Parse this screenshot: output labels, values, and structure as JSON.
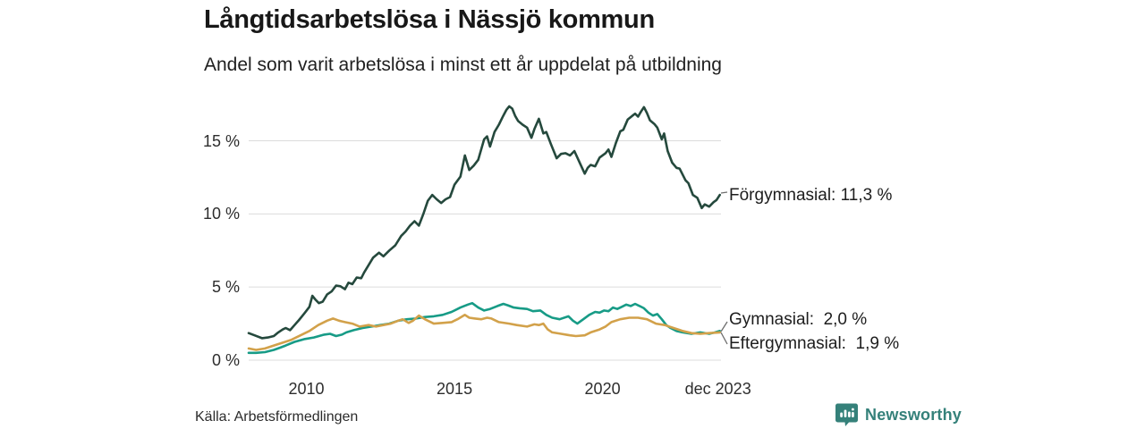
{
  "title": "Långtidsarbetslösa i Nässjö kommun",
  "subtitle": "Andel som varit arbetslösa i minst ett år uppdelat på utbildning",
  "source": "Källa: Arbetsförmedlingen",
  "brand": {
    "name": "Newsworthy",
    "color": "#35817a",
    "icon": "bar-chart-bubble-icon"
  },
  "chart_data": {
    "type": "line",
    "title": "Långtidsarbetslösa i Nässjö kommun",
    "subtitle": "Andel som varit arbetslösa i minst ett år uppdelat på utbildning",
    "xlabel": "",
    "ylabel": "",
    "x_unit": "decimal year (monthly series, 2008–dec 2023)",
    "ylim": [
      0,
      18
    ],
    "grid": true,
    "gridline_color": "#dcdcdc",
    "y_ticks": [
      {
        "value": 15,
        "label": "15 %"
      },
      {
        "value": 10,
        "label": "10 %"
      },
      {
        "value": 5,
        "label": "5 %"
      },
      {
        "value": 0,
        "label": "0 %"
      }
    ],
    "x_ticks": [
      {
        "value": 2010,
        "label": "2010"
      },
      {
        "value": 2015,
        "label": "2015"
      },
      {
        "value": 2020,
        "label": "2020"
      },
      {
        "value": 2023.9,
        "label": "dec 2023"
      }
    ],
    "legend_position": "right-end-labels",
    "series": [
      {
        "name": "Förgymnasial",
        "end_label": "Förgymnasial: 11,3 %",
        "current_value": "11,3 %",
        "color": "#25493d",
        "points": [
          [
            2008.05,
            1.85
          ],
          [
            2008.25,
            1.7
          ],
          [
            2008.5,
            1.5
          ],
          [
            2008.7,
            1.55
          ],
          [
            2008.9,
            1.65
          ],
          [
            2009.05,
            1.9
          ],
          [
            2009.2,
            2.1
          ],
          [
            2009.3,
            2.2
          ],
          [
            2009.45,
            2.05
          ],
          [
            2009.6,
            2.4
          ],
          [
            2009.75,
            2.75
          ],
          [
            2009.85,
            3.0
          ],
          [
            2009.95,
            3.25
          ],
          [
            2010.1,
            3.65
          ],
          [
            2010.2,
            4.4
          ],
          [
            2010.3,
            4.15
          ],
          [
            2010.42,
            3.9
          ],
          [
            2010.55,
            4.0
          ],
          [
            2010.7,
            4.5
          ],
          [
            2010.85,
            4.7
          ],
          [
            2011.0,
            5.1
          ],
          [
            2011.15,
            5.05
          ],
          [
            2011.3,
            4.85
          ],
          [
            2011.42,
            5.3
          ],
          [
            2011.55,
            5.2
          ],
          [
            2011.7,
            5.65
          ],
          [
            2011.85,
            5.6
          ],
          [
            2011.95,
            6.0
          ],
          [
            2012.1,
            6.5
          ],
          [
            2012.25,
            7.0
          ],
          [
            2012.45,
            7.35
          ],
          [
            2012.6,
            7.1
          ],
          [
            2012.8,
            7.5
          ],
          [
            2013.0,
            7.85
          ],
          [
            2013.2,
            8.5
          ],
          [
            2013.35,
            8.8
          ],
          [
            2013.5,
            9.2
          ],
          [
            2013.65,
            9.5
          ],
          [
            2013.8,
            9.2
          ],
          [
            2013.95,
            10.0
          ],
          [
            2014.1,
            10.9
          ],
          [
            2014.25,
            11.3
          ],
          [
            2014.4,
            11.0
          ],
          [
            2014.55,
            10.75
          ],
          [
            2014.7,
            11.0
          ],
          [
            2014.85,
            11.15
          ],
          [
            2015.0,
            12.0
          ],
          [
            2015.2,
            12.55
          ],
          [
            2015.35,
            14.0
          ],
          [
            2015.5,
            13.0
          ],
          [
            2015.65,
            13.3
          ],
          [
            2015.8,
            13.7
          ],
          [
            2016.0,
            15.1
          ],
          [
            2016.1,
            15.3
          ],
          [
            2016.2,
            14.6
          ],
          [
            2016.35,
            15.6
          ],
          [
            2016.5,
            16.1
          ],
          [
            2016.62,
            16.6
          ],
          [
            2016.75,
            17.1
          ],
          [
            2016.85,
            17.35
          ],
          [
            2016.95,
            17.2
          ],
          [
            2017.05,
            16.7
          ],
          [
            2017.15,
            16.35
          ],
          [
            2017.3,
            16.1
          ],
          [
            2017.45,
            15.9
          ],
          [
            2017.6,
            15.2
          ],
          [
            2017.7,
            15.8
          ],
          [
            2017.85,
            16.5
          ],
          [
            2018.0,
            15.5
          ],
          [
            2018.1,
            15.6
          ],
          [
            2018.25,
            14.8
          ],
          [
            2018.45,
            13.8
          ],
          [
            2018.6,
            14.1
          ],
          [
            2018.75,
            14.15
          ],
          [
            2018.9,
            14.0
          ],
          [
            2019.05,
            14.3
          ],
          [
            2019.25,
            13.4
          ],
          [
            2019.4,
            12.75
          ],
          [
            2019.5,
            13.15
          ],
          [
            2019.6,
            13.35
          ],
          [
            2019.75,
            13.25
          ],
          [
            2019.9,
            13.85
          ],
          [
            2020.1,
            14.15
          ],
          [
            2020.2,
            14.4
          ],
          [
            2020.3,
            13.9
          ],
          [
            2020.45,
            14.85
          ],
          [
            2020.6,
            15.65
          ],
          [
            2020.7,
            15.75
          ],
          [
            2020.85,
            16.45
          ],
          [
            2021.0,
            16.7
          ],
          [
            2021.1,
            16.85
          ],
          [
            2021.2,
            16.65
          ],
          [
            2021.3,
            17.0
          ],
          [
            2021.4,
            17.3
          ],
          [
            2021.5,
            16.9
          ],
          [
            2021.6,
            16.4
          ],
          [
            2021.75,
            16.15
          ],
          [
            2021.85,
            15.9
          ],
          [
            2022.0,
            15.1
          ],
          [
            2022.08,
            15.5
          ],
          [
            2022.2,
            14.3
          ],
          [
            2022.35,
            13.5
          ],
          [
            2022.5,
            13.15
          ],
          [
            2022.6,
            13.1
          ],
          [
            2022.8,
            12.3
          ],
          [
            2022.9,
            12.1
          ],
          [
            2023.05,
            11.3
          ],
          [
            2023.2,
            11.1
          ],
          [
            2023.35,
            10.4
          ],
          [
            2023.45,
            10.65
          ],
          [
            2023.6,
            10.5
          ],
          [
            2023.75,
            10.8
          ],
          [
            2023.85,
            10.95
          ],
          [
            2023.96,
            11.3
          ]
        ]
      },
      {
        "name": "Gymnasial",
        "end_label": "Gymnasial:  2,0 %",
        "current_value": "2,0 %",
        "color": "#179b86",
        "points": [
          [
            2008.05,
            0.5
          ],
          [
            2008.3,
            0.5
          ],
          [
            2008.6,
            0.55
          ],
          [
            2008.9,
            0.7
          ],
          [
            2009.1,
            0.85
          ],
          [
            2009.3,
            1.0
          ],
          [
            2009.6,
            1.25
          ],
          [
            2009.95,
            1.45
          ],
          [
            2010.25,
            1.55
          ],
          [
            2010.6,
            1.75
          ],
          [
            2010.8,
            1.8
          ],
          [
            2011.0,
            1.65
          ],
          [
            2011.2,
            1.75
          ],
          [
            2011.35,
            1.9
          ],
          [
            2011.6,
            2.05
          ],
          [
            2011.9,
            2.2
          ],
          [
            2012.2,
            2.3
          ],
          [
            2012.5,
            2.4
          ],
          [
            2012.8,
            2.5
          ],
          [
            2013.1,
            2.7
          ],
          [
            2013.4,
            2.8
          ],
          [
            2013.7,
            2.85
          ],
          [
            2014.0,
            2.95
          ],
          [
            2014.3,
            3.0
          ],
          [
            2014.6,
            3.1
          ],
          [
            2014.9,
            3.3
          ],
          [
            2015.2,
            3.6
          ],
          [
            2015.45,
            3.8
          ],
          [
            2015.6,
            3.9
          ],
          [
            2015.8,
            3.6
          ],
          [
            2016.0,
            3.4
          ],
          [
            2016.2,
            3.5
          ],
          [
            2016.45,
            3.7
          ],
          [
            2016.65,
            3.85
          ],
          [
            2016.8,
            3.75
          ],
          [
            2017.0,
            3.6
          ],
          [
            2017.2,
            3.55
          ],
          [
            2017.45,
            3.5
          ],
          [
            2017.65,
            3.35
          ],
          [
            2017.9,
            3.4
          ],
          [
            2018.1,
            3.1
          ],
          [
            2018.3,
            2.9
          ],
          [
            2018.55,
            2.8
          ],
          [
            2018.85,
            3.0
          ],
          [
            2019.0,
            2.7
          ],
          [
            2019.15,
            2.5
          ],
          [
            2019.35,
            2.8
          ],
          [
            2019.55,
            3.1
          ],
          [
            2019.75,
            3.3
          ],
          [
            2019.9,
            3.25
          ],
          [
            2020.05,
            3.4
          ],
          [
            2020.2,
            3.35
          ],
          [
            2020.35,
            3.6
          ],
          [
            2020.5,
            3.5
          ],
          [
            2020.65,
            3.65
          ],
          [
            2020.8,
            3.8
          ],
          [
            2020.95,
            3.7
          ],
          [
            2021.1,
            3.85
          ],
          [
            2021.25,
            3.7
          ],
          [
            2021.4,
            3.55
          ],
          [
            2021.55,
            3.25
          ],
          [
            2021.7,
            3.05
          ],
          [
            2021.85,
            3.15
          ],
          [
            2022.0,
            2.8
          ],
          [
            2022.15,
            2.4
          ],
          [
            2022.3,
            2.2
          ],
          [
            2022.5,
            2.0
          ],
          [
            2022.7,
            1.9
          ],
          [
            2023.0,
            1.8
          ],
          [
            2023.3,
            1.9
          ],
          [
            2023.6,
            1.8
          ],
          [
            2023.8,
            1.9
          ],
          [
            2023.96,
            2.0
          ]
        ]
      },
      {
        "name": "Eftergymnasial",
        "end_label": "Eftergymnasial:  1,9 %",
        "current_value": "1,9 %",
        "color": "#d2a14a",
        "points": [
          [
            2008.05,
            0.8
          ],
          [
            2008.3,
            0.7
          ],
          [
            2008.6,
            0.8
          ],
          [
            2008.9,
            1.0
          ],
          [
            2009.2,
            1.2
          ],
          [
            2009.5,
            1.4
          ],
          [
            2009.8,
            1.7
          ],
          [
            2010.1,
            2.0
          ],
          [
            2010.4,
            2.4
          ],
          [
            2010.7,
            2.7
          ],
          [
            2010.9,
            2.85
          ],
          [
            2011.1,
            2.7
          ],
          [
            2011.3,
            2.6
          ],
          [
            2011.55,
            2.5
          ],
          [
            2011.8,
            2.3
          ],
          [
            2012.1,
            2.4
          ],
          [
            2012.35,
            2.3
          ],
          [
            2012.6,
            2.4
          ],
          [
            2012.85,
            2.5
          ],
          [
            2013.1,
            2.7
          ],
          [
            2013.25,
            2.8
          ],
          [
            2013.45,
            2.55
          ],
          [
            2013.6,
            2.7
          ],
          [
            2013.8,
            3.05
          ],
          [
            2014.0,
            2.8
          ],
          [
            2014.3,
            2.5
          ],
          [
            2014.6,
            2.55
          ],
          [
            2014.9,
            2.6
          ],
          [
            2015.1,
            2.8
          ],
          [
            2015.35,
            3.1
          ],
          [
            2015.5,
            2.9
          ],
          [
            2015.7,
            2.85
          ],
          [
            2015.9,
            2.8
          ],
          [
            2016.1,
            2.9
          ],
          [
            2016.25,
            2.85
          ],
          [
            2016.5,
            2.6
          ],
          [
            2016.85,
            2.5
          ],
          [
            2017.1,
            2.4
          ],
          [
            2017.45,
            2.3
          ],
          [
            2017.7,
            2.45
          ],
          [
            2017.85,
            2.4
          ],
          [
            2018.0,
            2.5
          ],
          [
            2018.15,
            2.1
          ],
          [
            2018.3,
            1.9
          ],
          [
            2018.6,
            1.8
          ],
          [
            2018.9,
            1.7
          ],
          [
            2019.1,
            1.65
          ],
          [
            2019.4,
            1.7
          ],
          [
            2019.6,
            1.9
          ],
          [
            2019.9,
            2.1
          ],
          [
            2020.1,
            2.3
          ],
          [
            2020.3,
            2.6
          ],
          [
            2020.6,
            2.8
          ],
          [
            2020.9,
            2.9
          ],
          [
            2021.2,
            2.9
          ],
          [
            2021.5,
            2.8
          ],
          [
            2021.8,
            2.5
          ],
          [
            2022.1,
            2.4
          ],
          [
            2022.4,
            2.2
          ],
          [
            2022.7,
            2.0
          ],
          [
            2023.0,
            1.85
          ],
          [
            2023.3,
            1.8
          ],
          [
            2023.6,
            1.85
          ],
          [
            2023.96,
            1.9
          ]
        ]
      }
    ]
  }
}
